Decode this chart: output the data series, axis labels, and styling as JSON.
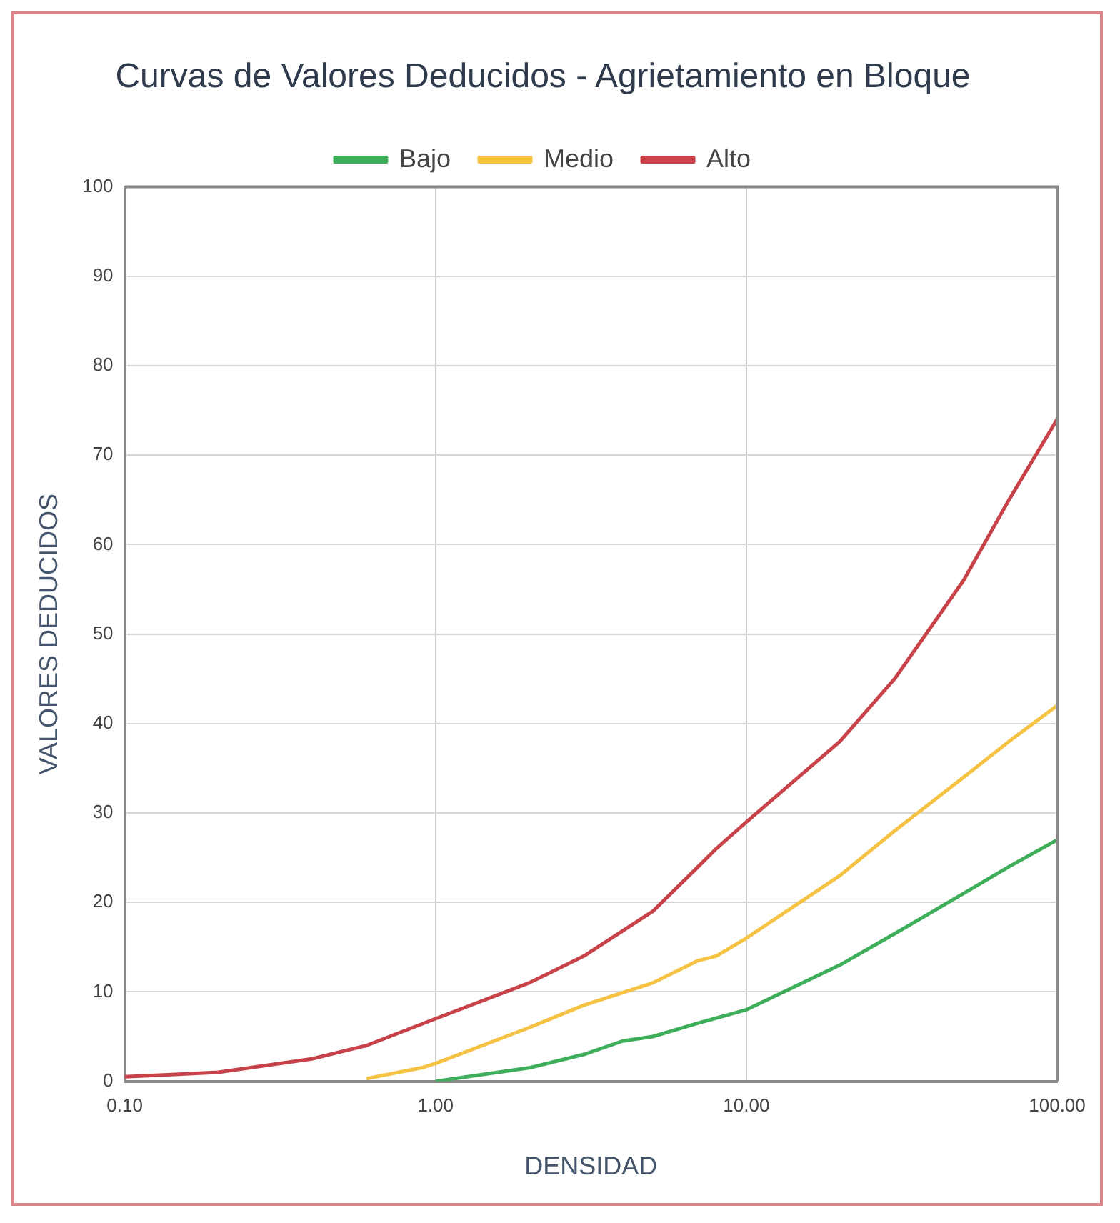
{
  "chart_data": {
    "type": "line",
    "title": "Curvas de Valores Deducidos - Agrietamiento en Bloque",
    "xlabel": "DENSIDAD",
    "ylabel": "VALORES DEDUCIDOS",
    "log": "x",
    "xlim": [
      0.1,
      100
    ],
    "xticks": [
      {
        "value": 0.1,
        "label": "0.10"
      },
      {
        "value": 1,
        "label": "1.00"
      },
      {
        "value": 10,
        "label": "10.00"
      },
      {
        "value": 100,
        "label": "100.00"
      }
    ],
    "ylim": [
      0,
      100
    ],
    "yticks": [
      0,
      10,
      20,
      30,
      40,
      50,
      60,
      70,
      80,
      90,
      100
    ],
    "grid": true,
    "legend": "top",
    "marker": "none",
    "line_style": "solid",
    "series": [
      {
        "name": "Bajo",
        "color": "#3fae5a",
        "x": [
          1,
          2,
          3,
          4,
          5,
          7,
          10,
          20,
          30,
          50,
          70,
          100
        ],
        "values": [
          0,
          1.5,
          3,
          4.5,
          5,
          6.5,
          8,
          13,
          16.5,
          21,
          24,
          27
        ]
      },
      {
        "name": "Medio",
        "color": "#f6c243",
        "x": [
          0.6,
          0.9,
          1,
          2,
          3,
          5,
          7,
          8,
          10,
          20,
          30,
          50,
          70,
          100
        ],
        "values": [
          0.3,
          1.5,
          2,
          6,
          8.5,
          11,
          13.5,
          14,
          16,
          23,
          28,
          34,
          38,
          42
        ]
      },
      {
        "name": "Alto",
        "color": "#c8424a",
        "x": [
          0.1,
          0.2,
          0.4,
          0.6,
          1,
          2,
          3,
          5,
          7,
          8,
          10,
          20,
          30,
          50,
          70,
          100
        ],
        "values": [
          0.5,
          1,
          2.5,
          4,
          7,
          11,
          14,
          19,
          24,
          26,
          29,
          38,
          45,
          56,
          65,
          74
        ]
      }
    ]
  }
}
